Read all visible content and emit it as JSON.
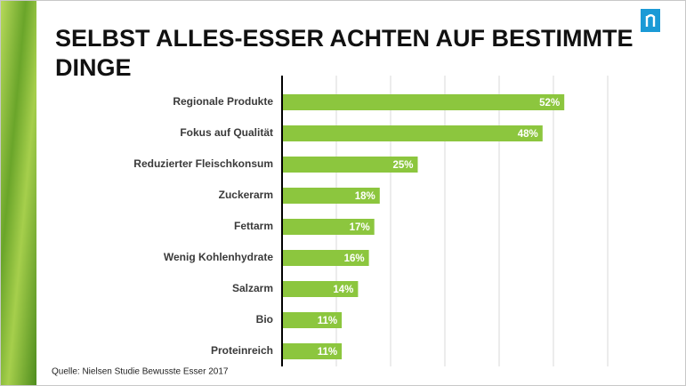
{
  "chart_data": {
    "type": "bar",
    "orientation": "horizontal",
    "title": "SELBST ALLES-ESSER ACHTEN AUF BESTIMMTE DINGE",
    "source": "Quelle: Nielsen Studie Bewusste Esser 2017",
    "categories": [
      "Regionale Produkte",
      "Fokus auf Qualität",
      "Reduzierter Fleischkonsum",
      "Zuckerarm",
      "Fettarm",
      "Wenig Kohlenhydrate",
      "Salzarm",
      "Bio",
      "Proteinreich"
    ],
    "values": [
      52,
      48,
      25,
      18,
      17,
      16,
      14,
      11,
      11
    ],
    "value_labels": [
      "52%",
      "48%",
      "25%",
      "18%",
      "17%",
      "16%",
      "14%",
      "11%",
      "11%"
    ],
    "color": "#8cc63e",
    "xlim": [
      0,
      60
    ],
    "xticks": [
      10,
      20,
      30,
      40,
      50,
      60
    ],
    "show_tick_labels": false,
    "grid": true
  }
}
